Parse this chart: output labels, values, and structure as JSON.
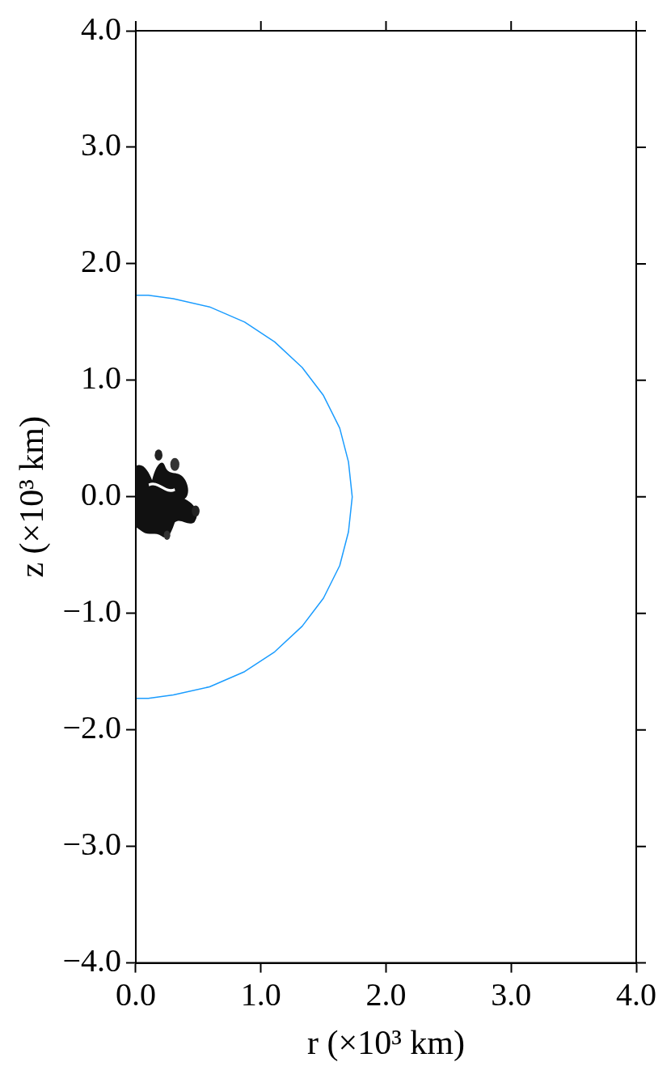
{
  "chart_data": {
    "type": "line",
    "xlabel": "r (×10³ km)",
    "ylabel": "z (×10³ km)",
    "x": [
      0,
      0.1,
      0.3,
      0.59,
      0.87,
      1.11,
      1.33,
      1.5,
      1.63,
      1.7,
      1.73,
      1.7,
      1.63,
      1.5,
      1.33,
      1.11,
      0.87,
      0.59,
      0.3,
      0.1,
      0
    ],
    "values": [
      1.73,
      1.73,
      1.7,
      1.63,
      1.5,
      1.33,
      1.11,
      0.87,
      0.59,
      0.3,
      0,
      -0.3,
      -0.59,
      -0.87,
      -1.11,
      -1.33,
      -1.5,
      -1.63,
      -1.7,
      -1.73,
      -1.73
    ],
    "color": "#1a9cff",
    "marker": "none",
    "line_style": "solid",
    "grid": false,
    "legend": false,
    "xlim": [
      0,
      4
    ],
    "ylim": [
      -4,
      4
    ],
    "xticks": [
      {
        "value": 0,
        "label": "0.0"
      },
      {
        "value": 1,
        "label": "1.0"
      },
      {
        "value": 2,
        "label": "2.0"
      },
      {
        "value": 3,
        "label": "3.0"
      },
      {
        "value": 4,
        "label": "4.0"
      }
    ],
    "yticks": [
      {
        "value": -4,
        "label": "−4.0"
      },
      {
        "value": -3,
        "label": "−3.0"
      },
      {
        "value": -2,
        "label": "−2.0"
      },
      {
        "value": -1,
        "label": "−1.0"
      },
      {
        "value": 0,
        "label": "0.0"
      },
      {
        "value": 1,
        "label": "1.0"
      },
      {
        "value": 2,
        "label": "2.0"
      },
      {
        "value": 3,
        "label": "3.0"
      },
      {
        "value": 4,
        "label": "4.0"
      }
    ]
  }
}
